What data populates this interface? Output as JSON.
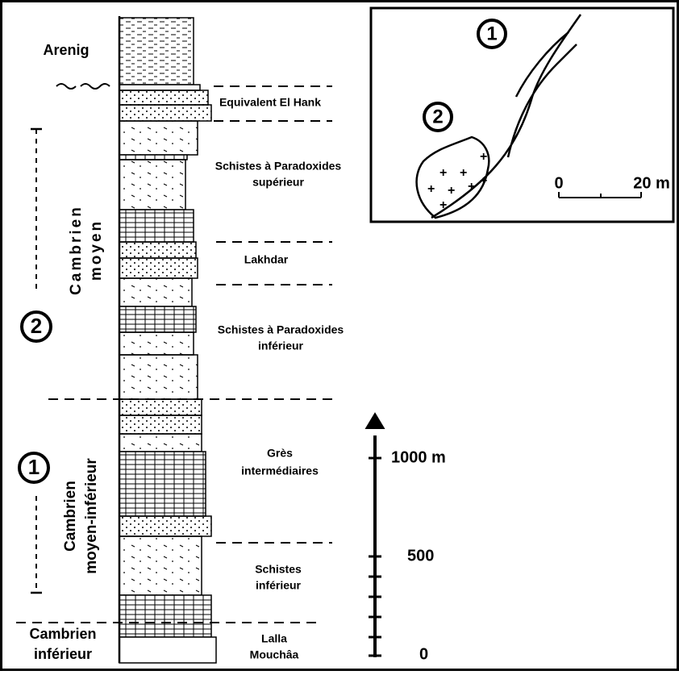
{
  "stages": {
    "arenig": "Arenig",
    "moyen": [
      "Cambrien",
      "moyen"
    ],
    "moyen_inferieur": [
      "Cambrien",
      "moyen-inférieur"
    ],
    "inferieur": [
      "Cambrien",
      "inférieur"
    ]
  },
  "formations": [
    [
      "Equivalent El Hank"
    ],
    [
      "Schistes à Paradoxides",
      "supérieur"
    ],
    [
      "Lakhdar"
    ],
    [
      "Schistes à Paradoxides",
      "inférieur"
    ],
    [
      "Grès",
      "intermédiaires"
    ],
    [
      "Schistes",
      "inférieur"
    ],
    [
      "Lalla",
      "Mouchâa"
    ]
  ],
  "markers": [
    "2",
    "1"
  ],
  "scale": [
    "1000 m",
    "500",
    "0"
  ],
  "inset": {
    "markers": [
      "1",
      "2"
    ],
    "scale": [
      "0",
      "20 m"
    ]
  }
}
